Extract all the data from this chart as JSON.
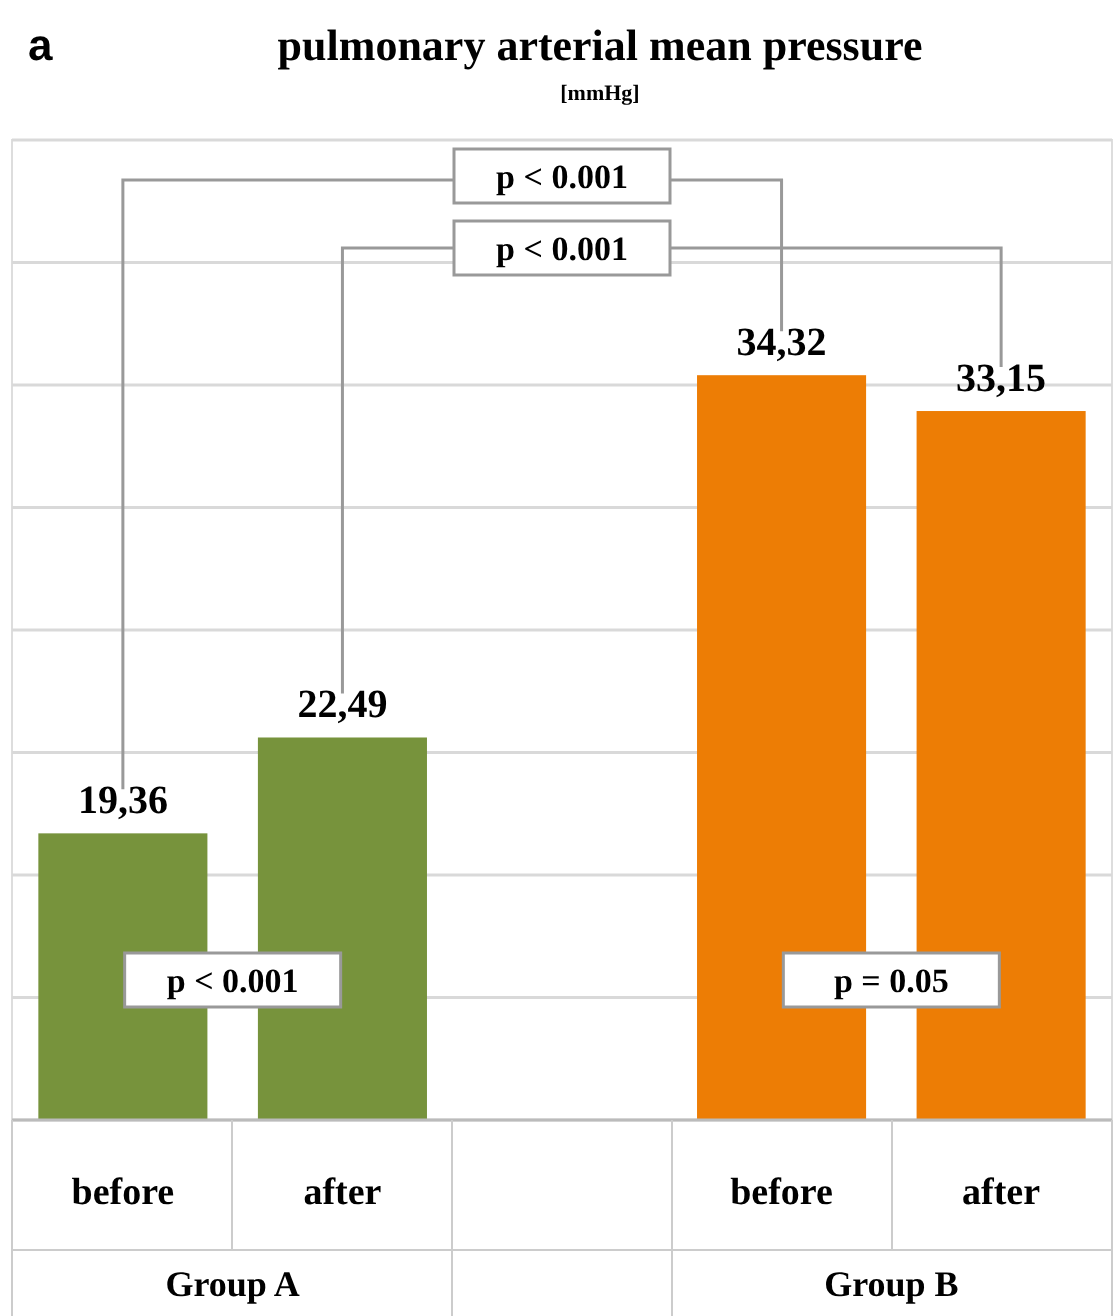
{
  "chart_data": {
    "type": "bar",
    "title": "pulmonary arterial mean pressure",
    "subtitle": "[mmHg]",
    "categories": [
      "before",
      "after",
      null,
      "before",
      "after"
    ],
    "values": [
      19.36,
      22.49,
      null,
      34.32,
      33.15
    ],
    "colors": [
      "#77933c",
      "#77933c",
      null,
      "#ed7d05",
      "#ed7d05"
    ],
    "value_labels": [
      "19,36",
      "22,49",
      null,
      "34,32",
      "33,15"
    ],
    "ylim": [
      10,
      42
    ],
    "yticks": [
      {
        "value": 10,
        "label": null
      },
      {
        "value": 14,
        "label": null
      },
      {
        "value": 18,
        "label": null
      },
      {
        "value": 22,
        "label": null
      },
      {
        "value": 26,
        "label": null
      },
      {
        "value": 30,
        "label": null
      },
      {
        "value": 34,
        "label": null
      },
      {
        "value": 38,
        "label": null
      },
      {
        "value": 42,
        "label": null
      }
    ],
    "grid": "y",
    "tick_labels": "x",
    "annotations": [
      "a",
      "p < 0.001",
      "p < 0.001",
      "p < 0.001",
      "p = 0.05",
      "Group A",
      "Group B"
    ]
  }
}
